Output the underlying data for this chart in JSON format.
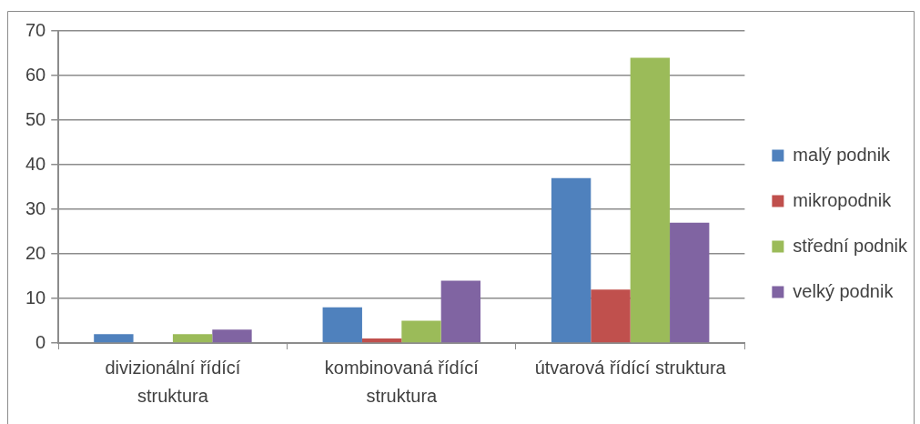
{
  "chart_data": {
    "type": "bar",
    "categories": [
      "divizionální řídící struktura",
      "kombinovaná řídící struktura",
      "útvarová řídící struktura"
    ],
    "series": [
      {
        "name": "malý podnik",
        "color": "#4f81bd",
        "values": [
          2,
          8,
          37
        ]
      },
      {
        "name": "mikropodnik",
        "color": "#c0504d",
        "values": [
          0,
          1,
          12
        ]
      },
      {
        "name": "střední podnik",
        "color": "#9bbb59",
        "values": [
          2,
          5,
          64
        ]
      },
      {
        "name": "velký podnik",
        "color": "#8064a2",
        "values": [
          3,
          14,
          27
        ]
      }
    ],
    "ylim": [
      0,
      70
    ],
    "yticks": [
      0,
      10,
      20,
      30,
      40,
      50,
      60,
      70
    ],
    "grid": "y",
    "legend": "right"
  }
}
